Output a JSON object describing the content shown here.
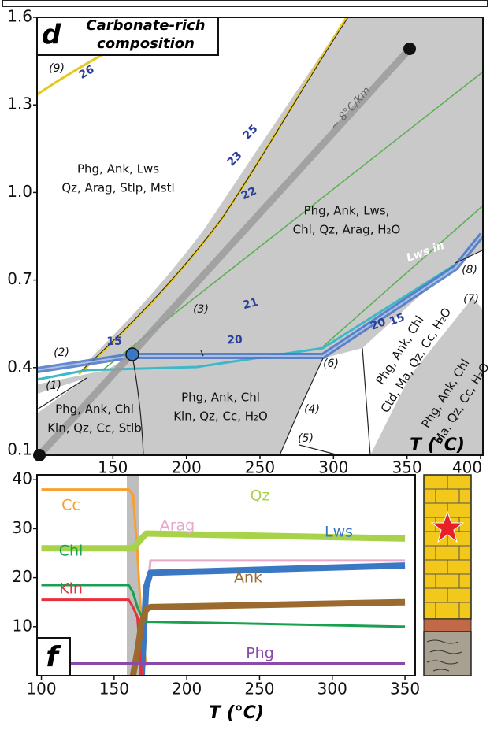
{
  "chart_data": [
    {
      "type": "phase-diagram",
      "title": "d",
      "subtitle": [
        "Carbonate-rich",
        "composition"
      ],
      "x_label": "T (°C)",
      "xlim": [
        100,
        400
      ],
      "xticks": [
        150,
        200,
        250,
        300,
        350,
        400
      ],
      "ylim": [
        0.1,
        1.6
      ],
      "yticks": [
        0.1,
        0.4,
        0.7,
        {
          "value": 1,
          "label": "1.0"
        },
        1.3,
        1.6
      ],
      "fields": [
        [
          "Phg, Ank, Lws",
          "Qz, Arag, Stlp, Mstl"
        ],
        [
          "Phg, Ank, Lws,",
          "Chl, Qz, Arag, H₂O"
        ],
        [
          "Phg, Ank, Chl",
          "Kln, Qz, Cc, Stlb"
        ],
        [
          "Phg, Ank, Chl",
          "Kln, Qz, Cc, H₂O"
        ],
        [
          "Phg, Ank, Chl",
          "Ctd, Ma, Qz, Cc, H₂O"
        ],
        [
          "Phg, Ank, Chl",
          "Ma, Qz, Cc, H₂O"
        ]
      ],
      "reactions": [
        "(1)",
        "(2)",
        "(3)",
        "(4)",
        "(5)",
        "(6)",
        "(7)",
        "(8)",
        "(9)"
      ],
      "isopleths": [
        "26",
        "25",
        "23",
        "22",
        "21",
        "15",
        "20",
        "20",
        "15"
      ],
      "boundary_label": "Lws in",
      "geotherm_label": "~ 8°C/km"
    },
    {
      "type": "line",
      "title": "f",
      "x_label": "T (°C)",
      "x": [
        100,
        160,
        163,
        166,
        169,
        172,
        175,
        350
      ],
      "xlim": [
        97,
        357
      ],
      "xticks": [
        100,
        150,
        200,
        250,
        300,
        350
      ],
      "ylim": [
        0,
        41
      ],
      "yticks": [
        10,
        20,
        30,
        40
      ],
      "series": [
        {
          "name": "Cc",
          "color": "#f7a030",
          "values": [
            38,
            38,
            37,
            25,
            10,
            2,
            null,
            null
          ]
        },
        {
          "name": "Qz",
          "color": "#a8d24a",
          "values": [
            26,
            26,
            26,
            27,
            28,
            29,
            29,
            28
          ]
        },
        {
          "name": "Arag",
          "color": "#e8a8c8",
          "values": [
            null,
            null,
            null,
            null,
            0,
            15,
            23.5,
            23.5
          ]
        },
        {
          "name": "Lws",
          "color": "#3b78c4",
          "values": [
            null,
            null,
            null,
            null,
            0,
            18,
            21,
            22.5
          ]
        },
        {
          "name": "Chl",
          "color": "#1aa050",
          "values": [
            18.5,
            18.5,
            17,
            14,
            12,
            11,
            11,
            10
          ]
        },
        {
          "name": "Kln",
          "color": "#e8303a",
          "values": [
            15.5,
            15.5,
            14,
            12,
            0,
            null,
            null,
            null
          ]
        },
        {
          "name": "Ank",
          "color": "#9a6a2e",
          "values": [
            null,
            null,
            0,
            5,
            11,
            13.5,
            14,
            15
          ]
        },
        {
          "name": "Phg",
          "color": "#8a4aa8",
          "values": [
            2.5,
            2.5,
            2.5,
            2.5,
            2.5,
            2.5,
            2.5,
            2.5
          ]
        }
      ]
    }
  ]
}
